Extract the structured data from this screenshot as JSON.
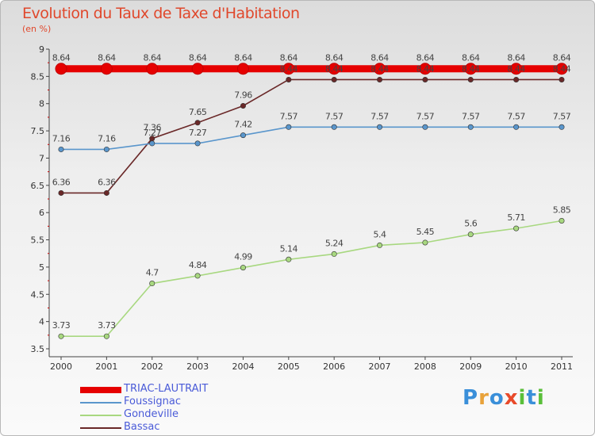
{
  "title": "Evolution du Taux de Taxe d'Habitation",
  "subtitle": "(en %)",
  "logo": {
    "letters": [
      "P",
      "r",
      "o",
      "x",
      "i",
      "t",
      "i"
    ],
    "colors": [
      "#3a8fd9",
      "#e8a23a",
      "#3a8fd9",
      "#e84a2a",
      "#5abf3a",
      "#3a8fd9",
      "#5abf3a"
    ]
  },
  "chart_data": {
    "type": "line",
    "categories": [
      "2000",
      "2001",
      "2002",
      "2003",
      "2004",
      "2005",
      "2006",
      "2007",
      "2008",
      "2009",
      "2010",
      "2011"
    ],
    "ylim": [
      3.5,
      9
    ],
    "yticks": [
      "3.5",
      "4",
      "4.5",
      "5",
      "5.5",
      "6",
      "6.5",
      "7",
      "7.5",
      "8",
      "8.5",
      "9"
    ],
    "grid": false,
    "legend_position": "bottom-left",
    "series": [
      {
        "name": "TRIAC-LAUTRAIT",
        "color": "#e60000",
        "values": [
          8.64,
          8.64,
          8.64,
          8.64,
          8.64,
          8.64,
          8.64,
          8.64,
          8.64,
          8.64,
          8.64,
          8.64
        ],
        "labels": [
          "8.64",
          "8.64",
          "8.64",
          "8.64",
          "8.64",
          "8.64",
          "8.64",
          "8.64",
          "8.64",
          "8.64",
          "8.64",
          "8.64"
        ]
      },
      {
        "name": "Foussignac",
        "color": "#5a96cc",
        "values": [
          7.16,
          7.16,
          7.27,
          7.27,
          7.42,
          7.57,
          7.57,
          7.57,
          7.57,
          7.57,
          7.57,
          7.57
        ],
        "labels": [
          "7.16",
          "7.16",
          "7.27",
          "7.27",
          "7.42",
          "7.57",
          "7.57",
          "7.57",
          "7.57",
          "7.57",
          "7.57",
          "7.57"
        ]
      },
      {
        "name": "Gondeville",
        "color": "#a8d880",
        "values": [
          3.73,
          3.73,
          4.7,
          4.84,
          4.99,
          5.14,
          5.24,
          5.4,
          5.45,
          5.6,
          5.71,
          5.85
        ],
        "labels": [
          "3.73",
          "3.73",
          "4.7",
          "4.84",
          "4.99",
          "5.14",
          "5.24",
          "5.4",
          "5.45",
          "5.6",
          "5.71",
          "5.85"
        ]
      },
      {
        "name": "Bassac",
        "color": "#6a2828",
        "values": [
          6.36,
          6.36,
          7.36,
          7.65,
          7.96,
          8.44,
          8.44,
          8.44,
          8.44,
          8.44,
          8.44,
          8.44
        ],
        "labels": [
          "6.36",
          "6.36",
          "7.36",
          "7.65",
          "7.96",
          "8.44",
          "8.44",
          "8.44",
          "8.44",
          "8.44",
          "8.44",
          "8.44"
        ]
      }
    ]
  }
}
